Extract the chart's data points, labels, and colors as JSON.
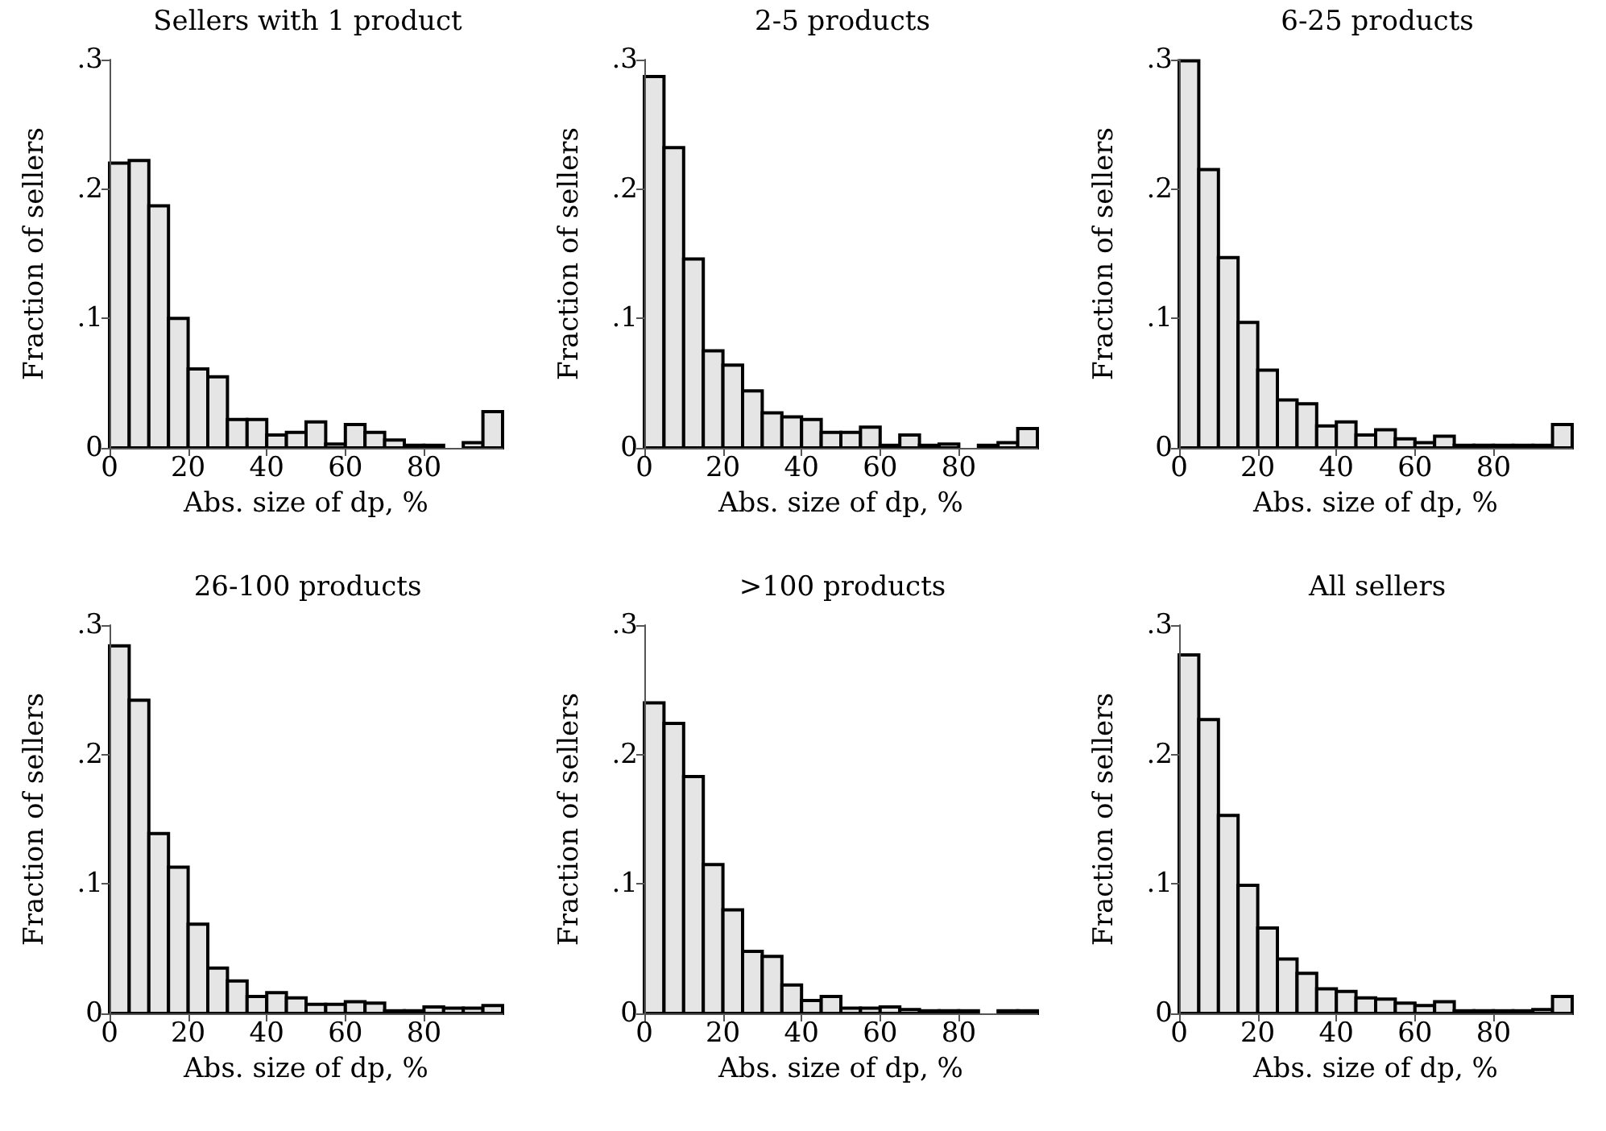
{
  "chart_data": [
    {
      "type": "histogram",
      "title": "Sellers with 1 product",
      "xlabel": "Abs. size of dp, %",
      "ylabel": "Fraction of sellers",
      "color": "#e5e5e5",
      "bins": [
        0,
        5,
        10,
        15,
        20,
        25,
        30,
        35,
        40,
        45,
        50,
        55,
        60,
        65,
        70,
        75,
        80,
        85,
        90,
        95,
        100
      ],
      "values": [
        0.22,
        0.222,
        0.187,
        0.1,
        0.061,
        0.055,
        0.022,
        0.022,
        0.01,
        0.012,
        0.02,
        0.003,
        0.018,
        0.012,
        0.006,
        0.002,
        0.002,
        0,
        0.004,
        0.028
      ],
      "xlim": [
        0,
        100
      ],
      "xticks": [
        0,
        20,
        40,
        60,
        80
      ],
      "ylim": [
        0,
        0.3
      ],
      "yticks": [
        {
          "value": 0,
          "label": "0"
        },
        {
          "value": 0.1,
          "label": ".1"
        },
        {
          "value": 0.2,
          "label": ".2"
        },
        {
          "value": 0.3,
          "label": ".3"
        }
      ],
      "grid": false
    },
    {
      "type": "histogram",
      "title": "2-5 products",
      "xlabel": "Abs. size of dp, %",
      "ylabel": "Fraction of sellers",
      "color": "#e5e5e5",
      "bins": [
        0,
        5,
        10,
        15,
        20,
        25,
        30,
        35,
        40,
        45,
        50,
        55,
        60,
        65,
        70,
        75,
        80,
        85,
        90,
        95,
        100
      ],
      "values": [
        0.287,
        0.232,
        0.146,
        0.075,
        0.064,
        0.044,
        0.027,
        0.024,
        0.022,
        0.012,
        0.012,
        0.016,
        0.002,
        0.01,
        0.002,
        0.003,
        0,
        0.002,
        0.004,
        0.015
      ],
      "xlim": [
        0,
        100
      ],
      "xticks": [
        0,
        20,
        40,
        60,
        80
      ],
      "ylim": [
        0,
        0.3
      ],
      "yticks": [
        {
          "value": 0,
          "label": "0"
        },
        {
          "value": 0.1,
          "label": ".1"
        },
        {
          "value": 0.2,
          "label": ".2"
        },
        {
          "value": 0.3,
          "label": ".3"
        }
      ],
      "grid": false
    },
    {
      "type": "histogram",
      "title": "6-25 products",
      "xlabel": "Abs. size of dp, %",
      "ylabel": "Fraction of sellers",
      "color": "#e5e5e5",
      "bins": [
        0,
        5,
        10,
        15,
        20,
        25,
        30,
        35,
        40,
        45,
        50,
        55,
        60,
        65,
        70,
        75,
        80,
        85,
        90,
        95,
        100
      ],
      "values": [
        0.299,
        0.215,
        0.147,
        0.097,
        0.06,
        0.037,
        0.034,
        0.017,
        0.02,
        0.01,
        0.014,
        0.007,
        0.004,
        0.009,
        0.002,
        0.002,
        0.002,
        0.002,
        0.002,
        0.018
      ],
      "xlim": [
        0,
        100
      ],
      "xticks": [
        0,
        20,
        40,
        60,
        80
      ],
      "ylim": [
        0,
        0.3
      ],
      "yticks": [
        {
          "value": 0,
          "label": "0"
        },
        {
          "value": 0.1,
          "label": ".1"
        },
        {
          "value": 0.2,
          "label": ".2"
        },
        {
          "value": 0.3,
          "label": ".3"
        }
      ],
      "grid": false
    },
    {
      "type": "histogram",
      "title": "26-100 products",
      "xlabel": "Abs. size of dp, %",
      "ylabel": "Fraction of sellers",
      "color": "#e5e5e5",
      "bins": [
        0,
        5,
        10,
        15,
        20,
        25,
        30,
        35,
        40,
        45,
        50,
        55,
        60,
        65,
        70,
        75,
        80,
        85,
        90,
        95,
        100
      ],
      "values": [
        0.284,
        0.242,
        0.139,
        0.113,
        0.069,
        0.035,
        0.025,
        0.013,
        0.016,
        0.012,
        0.007,
        0.007,
        0.009,
        0.008,
        0.002,
        0.002,
        0.005,
        0.004,
        0.004,
        0.006
      ],
      "xlim": [
        0,
        100
      ],
      "xticks": [
        0,
        20,
        40,
        60,
        80
      ],
      "ylim": [
        0,
        0.3
      ],
      "yticks": [
        {
          "value": 0,
          "label": "0"
        },
        {
          "value": 0.1,
          "label": ".1"
        },
        {
          "value": 0.2,
          "label": ".2"
        },
        {
          "value": 0.3,
          "label": ".3"
        }
      ],
      "grid": false
    },
    {
      "type": "histogram",
      "title": ">100 products",
      "xlabel": "Abs. size of dp, %",
      "ylabel": "Fraction of sellers",
      "color": "#e5e5e5",
      "bins": [
        0,
        5,
        10,
        15,
        20,
        25,
        30,
        35,
        40,
        45,
        50,
        55,
        60,
        65,
        70,
        75,
        80,
        85,
        90,
        95,
        100
      ],
      "values": [
        0.24,
        0.224,
        0.183,
        0.115,
        0.08,
        0.048,
        0.044,
        0.022,
        0.01,
        0.013,
        0.004,
        0.004,
        0.005,
        0.003,
        0.002,
        0.002,
        0.002,
        0,
        0.002,
        0.002
      ],
      "xlim": [
        0,
        100
      ],
      "xticks": [
        0,
        20,
        40,
        60,
        80
      ],
      "ylim": [
        0,
        0.3
      ],
      "yticks": [
        {
          "value": 0,
          "label": "0"
        },
        {
          "value": 0.1,
          "label": ".1"
        },
        {
          "value": 0.2,
          "label": ".2"
        },
        {
          "value": 0.3,
          "label": ".3"
        }
      ],
      "grid": false
    },
    {
      "type": "histogram",
      "title": "All sellers",
      "xlabel": "Abs. size of dp, %",
      "ylabel": "Fraction of sellers",
      "color": "#e5e5e5",
      "bins": [
        0,
        5,
        10,
        15,
        20,
        25,
        30,
        35,
        40,
        45,
        50,
        55,
        60,
        65,
        70,
        75,
        80,
        85,
        90,
        95,
        100
      ],
      "values": [
        0.277,
        0.227,
        0.153,
        0.099,
        0.066,
        0.042,
        0.031,
        0.019,
        0.017,
        0.012,
        0.011,
        0.008,
        0.006,
        0.009,
        0.002,
        0.002,
        0.002,
        0.002,
        0.003,
        0.013
      ],
      "xlim": [
        0,
        100
      ],
      "xticks": [
        0,
        20,
        40,
        60,
        80
      ],
      "ylim": [
        0,
        0.3
      ],
      "yticks": [
        {
          "value": 0,
          "label": "0"
        },
        {
          "value": 0.1,
          "label": ".1"
        },
        {
          "value": 0.2,
          "label": ".2"
        },
        {
          "value": 0.3,
          "label": ".3"
        }
      ],
      "grid": false
    }
  ]
}
